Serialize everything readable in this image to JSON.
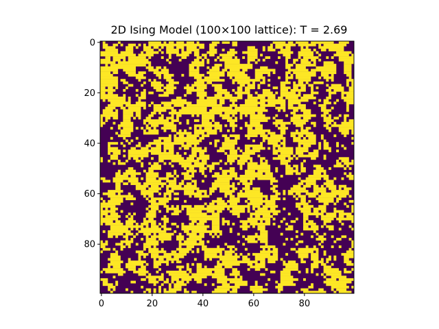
{
  "chart_data": {
    "type": "heatmap",
    "title": "2D Ising Model (100×100 lattice): T = 2.69",
    "xlabel": "",
    "ylabel": "",
    "rows": 100,
    "cols": 100,
    "xlim": [
      -0.5,
      99.5
    ],
    "ylim": [
      99.5,
      -0.5
    ],
    "x_ticks": [
      0,
      20,
      40,
      60,
      80
    ],
    "y_ticks": [
      0,
      20,
      40,
      60,
      80
    ],
    "values": [
      -1,
      1
    ],
    "colormap": "viridis",
    "colors": {
      "-1": "#440154",
      "1": "#fde725"
    },
    "grid": false,
    "legend": "none",
    "seed": 269
  }
}
